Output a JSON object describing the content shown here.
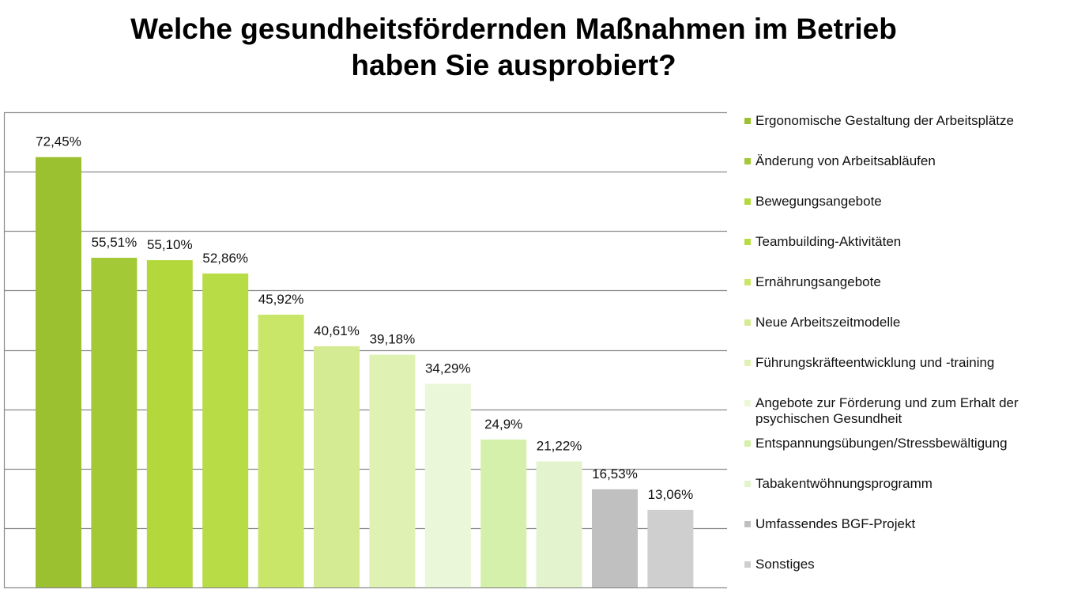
{
  "chart_data": {
    "type": "bar",
    "title": "Welche gesundheitsfördernden Maßnahmen im Betrieb haben Sie ausprobiert?",
    "title_lines": [
      "Welche gesundheitsfördernden Maßnahmen im Betrieb",
      "haben Sie ausprobiert?"
    ],
    "ylim": [
      0,
      80
    ],
    "ytick_step": 10,
    "grid": true,
    "legend_position": "right",
    "xlabel": "",
    "ylabel": "",
    "categories": [
      "Ergonomische Gestaltung der Arbeitsplätze",
      "Änderung von Arbeitsabläufen",
      "Bewegungsangebote",
      "Teambuilding-Aktivitäten",
      "Ernährungsangebote",
      "Neue Arbeitszeitmodelle",
      "Führungskräfteentwicklung und -training",
      "Angebote zur Förderung und zum Erhalt der psychischen Gesundheit",
      "Entspannungsübungen/Stressbewältigung",
      "Tabakentwöhnungsprogramm",
      "Umfassendes BGF-Projekt",
      "Sonstiges"
    ],
    "values": [
      72.45,
      55.51,
      55.1,
      52.86,
      45.92,
      40.61,
      39.18,
      34.29,
      24.9,
      21.22,
      16.53,
      13.06
    ],
    "value_labels": [
      "72,45%",
      "55,51%",
      "55,10%",
      "52,86%",
      "45,92%",
      "40,61%",
      "39,18%",
      "34,29%",
      "24,9%",
      "21,22%",
      "16,53%",
      "13,06%"
    ],
    "colors": [
      "#9cc130",
      "#a4c936",
      "#b3d83c",
      "#b8dc46",
      "#c9e668",
      "#d4eb93",
      "#e0f2b3",
      "#ebf7d9",
      "#d5f0ab",
      "#e2f3cd",
      "#c0c0c0",
      "#cfcfcf"
    ]
  }
}
